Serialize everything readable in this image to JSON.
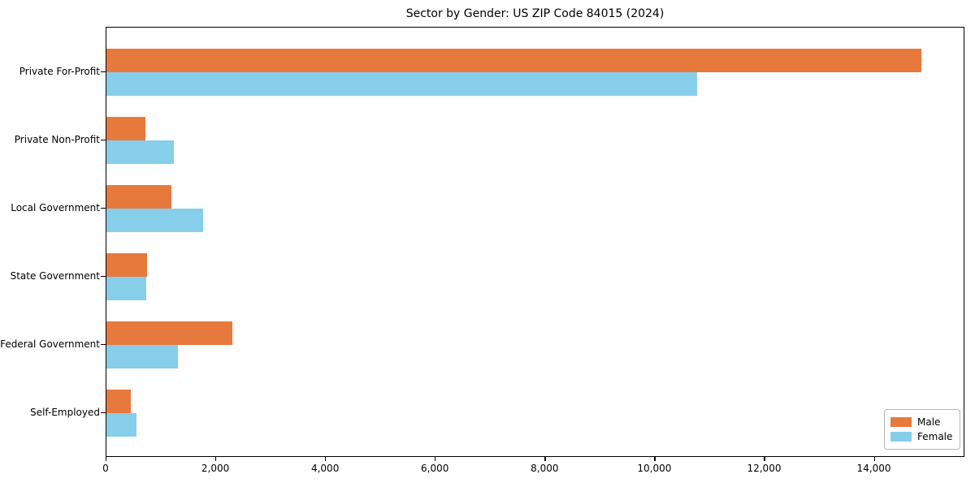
{
  "chart_data": {
    "type": "bar",
    "orientation": "horizontal",
    "title": "Sector by Gender: US ZIP Code 84015 (2024)",
    "categories": [
      "Private For-Profit",
      "Private Non-Profit",
      "Local Government",
      "State Government",
      "Federal Government",
      "Self-Employed"
    ],
    "series": [
      {
        "name": "Male",
        "color": "#e8793d",
        "values": [
          14880,
          710,
          1190,
          740,
          2300,
          440
        ]
      },
      {
        "name": "Female",
        "color": "#87ceeb",
        "values": [
          10780,
          1230,
          1770,
          720,
          1300,
          550
        ]
      }
    ],
    "xlim": [
      0,
      15650
    ],
    "xticks": [
      0,
      2000,
      4000,
      6000,
      8000,
      10000,
      12000,
      14000
    ],
    "xtick_labels": [
      "0",
      "2,000",
      "4,000",
      "6,000",
      "8,000",
      "10,000",
      "12,000",
      "14,000"
    ],
    "xlabel": "",
    "ylabel": "",
    "grid": false,
    "legend_position": "lower right",
    "spine_color": "#000000",
    "background_color": "#ffffff"
  }
}
